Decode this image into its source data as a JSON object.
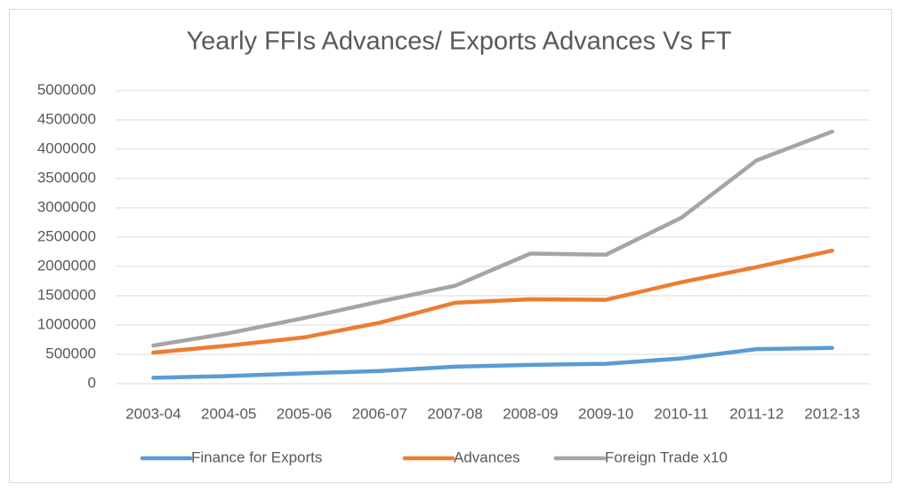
{
  "chart_data": {
    "type": "line",
    "title": "Yearly FFIs Advances/ Exports Advances Vs FT",
    "categories": [
      "2003-04",
      "2004-05",
      "2005-06",
      "2006-07",
      "2007-08",
      "2008-09",
      "2009-10",
      "2010-11",
      "2011-12",
      "2012-13"
    ],
    "series": [
      {
        "name": "Finance for Exports",
        "color": "#5b9bd5",
        "values": [
          100000,
          130000,
          175000,
          215000,
          290000,
          320000,
          340000,
          430000,
          590000,
          610000
        ]
      },
      {
        "name": "Advances",
        "color": "#ed7d31",
        "values": [
          530000,
          650000,
          790000,
          1040000,
          1380000,
          1440000,
          1430000,
          1730000,
          1990000,
          2270000
        ]
      },
      {
        "name": "Foreign Trade x10",
        "color": "#a5a5a5",
        "values": [
          650000,
          860000,
          1120000,
          1400000,
          1670000,
          2220000,
          2200000,
          2830000,
          3810000,
          4300000
        ]
      }
    ],
    "ylim": [
      0,
      5000000
    ],
    "yticks": [
      0,
      500000,
      1000000,
      1500000,
      2000000,
      2500000,
      3000000,
      3500000,
      4000000,
      4500000,
      5000000
    ],
    "grid": true,
    "legend": "bottom"
  }
}
